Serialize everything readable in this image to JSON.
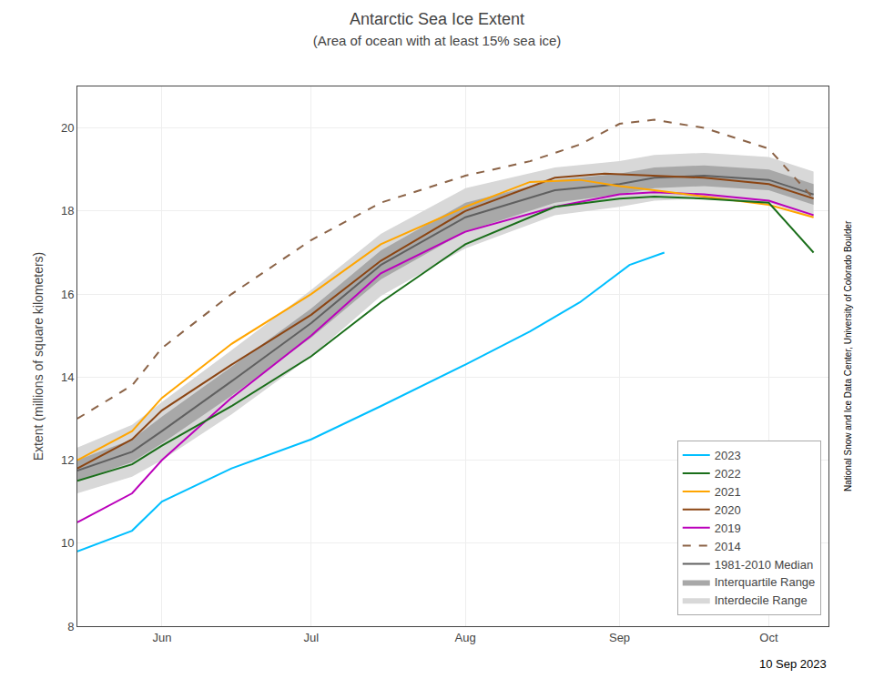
{
  "chart_data": {
    "type": "line",
    "title": "Antarctic Sea Ice Extent",
    "subtitle": "(Area of ocean with at least 15% sea ice)",
    "ylabel": "Extent (millions of square kilometers)",
    "annotations": [
      {
        "text": "10 Sep 2023"
      },
      {
        "text": "National Snow and Ice Data Center, University of Colorado Boulder"
      }
    ],
    "xlim": [
      14,
      165
    ],
    "xticks": [
      {
        "value": 31,
        "label": "Jun"
      },
      {
        "value": 61,
        "label": "Jul"
      },
      {
        "value": 92,
        "label": "Aug"
      },
      {
        "value": 123,
        "label": "Sep"
      },
      {
        "value": 153,
        "label": "Oct"
      }
    ],
    "ylim": [
      8,
      21
    ],
    "yticks": [
      8,
      10,
      12,
      14,
      16,
      18,
      20
    ],
    "grid": true,
    "legend": "lower right",
    "series": [
      {
        "name": "2023",
        "type": "line",
        "color": "#00BFFF",
        "line_style": "solid",
        "x": [
          14,
          25,
          31,
          45,
          61,
          75,
          92,
          105,
          115,
          125,
          132
        ],
        "values": [
          9.8,
          10.3,
          11.0,
          11.8,
          12.5,
          13.3,
          14.3,
          15.1,
          15.8,
          16.7,
          17.0
        ]
      },
      {
        "name": "2022",
        "type": "line",
        "color": "#1a6e1a",
        "line_style": "solid",
        "x": [
          14,
          25,
          31,
          45,
          61,
          75,
          92,
          110,
          123,
          130,
          140,
          153,
          162
        ],
        "values": [
          11.5,
          11.9,
          12.35,
          13.3,
          14.5,
          15.8,
          17.2,
          18.1,
          18.3,
          18.35,
          18.3,
          18.2,
          17.0
        ]
      },
      {
        "name": "2021",
        "type": "line",
        "color": "#FFA500",
        "line_style": "solid",
        "x": [
          14,
          25,
          31,
          45,
          61,
          75,
          92,
          105,
          115,
          123,
          130,
          140,
          153,
          162
        ],
        "values": [
          12.0,
          12.7,
          13.5,
          14.8,
          16.0,
          17.2,
          18.1,
          18.7,
          18.75,
          18.6,
          18.5,
          18.35,
          18.15,
          17.85
        ]
      },
      {
        "name": "2020",
        "type": "line",
        "color": "#8B4513",
        "line_style": "solid",
        "x": [
          14,
          25,
          31,
          45,
          61,
          75,
          92,
          110,
          120,
          130,
          140,
          153,
          162
        ],
        "values": [
          11.8,
          12.5,
          13.2,
          14.3,
          15.5,
          16.8,
          18.0,
          18.8,
          18.9,
          18.85,
          18.8,
          18.65,
          18.3
        ]
      },
      {
        "name": "2019",
        "type": "line",
        "color": "#BB00BB",
        "line_style": "solid",
        "x": [
          14,
          25,
          31,
          45,
          61,
          75,
          92,
          110,
          123,
          130,
          140,
          153,
          162
        ],
        "values": [
          10.5,
          11.2,
          12.0,
          13.5,
          15.0,
          16.5,
          17.5,
          18.1,
          18.4,
          18.45,
          18.4,
          18.25,
          17.9
        ]
      },
      {
        "name": "2014",
        "type": "line",
        "color": "#8B6347",
        "line_style": "dashed",
        "x": [
          14,
          25,
          31,
          45,
          61,
          75,
          92,
          105,
          115,
          123,
          130,
          140,
          153,
          162
        ],
        "values": [
          13.0,
          13.8,
          14.7,
          16.0,
          17.3,
          18.2,
          18.85,
          19.2,
          19.6,
          20.1,
          20.2,
          20.0,
          19.5,
          18.3
        ]
      },
      {
        "name": "1981-2010 Median",
        "type": "line",
        "color": "#606060",
        "line_style": "solid",
        "x": [
          14,
          25,
          31,
          45,
          61,
          75,
          92,
          110,
          123,
          130,
          140,
          153,
          162
        ],
        "values": [
          11.75,
          12.2,
          12.7,
          13.9,
          15.3,
          16.7,
          17.85,
          18.5,
          18.65,
          18.8,
          18.85,
          18.75,
          18.4
        ]
      },
      {
        "name": "Interquartile Range",
        "type": "band",
        "color": "#a8a8a8",
        "x": [
          14,
          25,
          31,
          45,
          61,
          75,
          92,
          110,
          123,
          130,
          140,
          153,
          162
        ],
        "lower": [
          11.5,
          11.95,
          12.4,
          13.55,
          14.95,
          16.35,
          17.5,
          18.2,
          18.4,
          18.55,
          18.6,
          18.5,
          18.15
        ],
        "upper": [
          12.0,
          12.5,
          13.05,
          14.25,
          15.65,
          17.05,
          18.2,
          18.75,
          18.9,
          19.05,
          19.1,
          19.0,
          18.65
        ]
      },
      {
        "name": "Interdecile Range",
        "type": "band",
        "color": "#d8d8d8",
        "x": [
          14,
          25,
          31,
          45,
          61,
          75,
          92,
          110,
          123,
          130,
          140,
          153,
          162
        ],
        "lower": [
          11.2,
          11.6,
          12.0,
          13.1,
          14.5,
          15.95,
          17.1,
          17.9,
          18.1,
          18.25,
          18.3,
          18.2,
          17.85
        ],
        "upper": [
          12.3,
          12.85,
          13.4,
          14.65,
          16.1,
          17.45,
          18.55,
          19.05,
          19.2,
          19.35,
          19.4,
          19.3,
          18.95
        ]
      }
    ]
  }
}
